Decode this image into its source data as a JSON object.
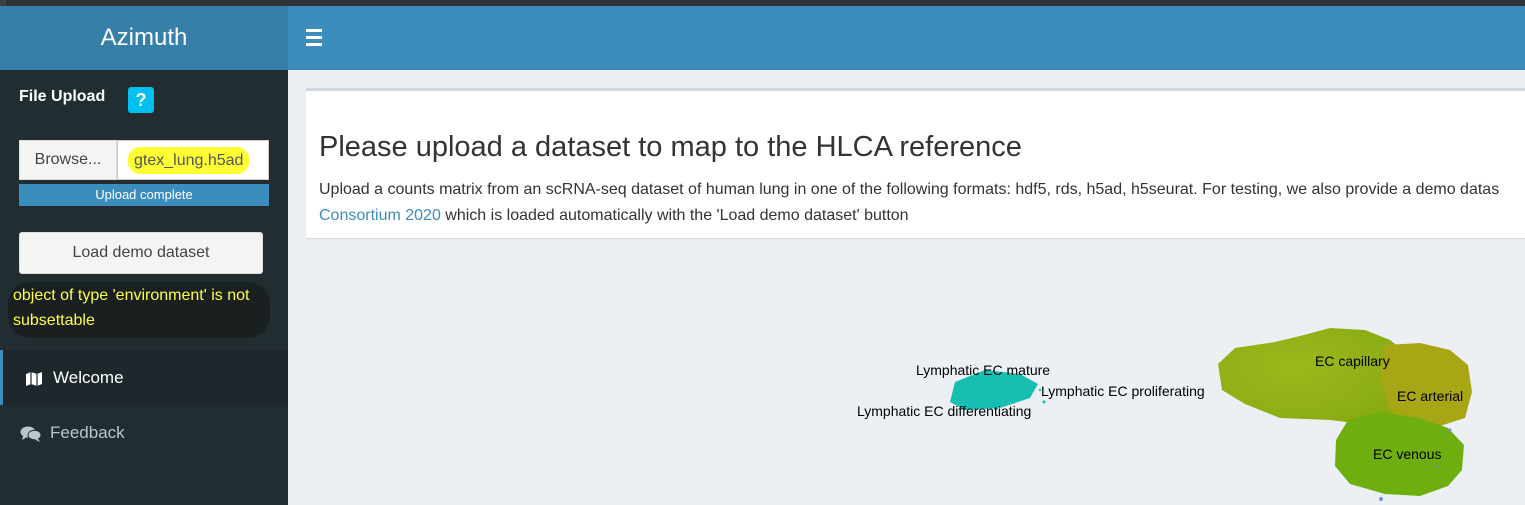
{
  "app": {
    "title": "Azimuth"
  },
  "sidebar": {
    "file_upload_title": "File Upload",
    "help_label": "?",
    "browse_label": "Browse...",
    "file_name": "gtex_lung.h5ad",
    "progress_text": "Upload complete",
    "progress_value": 1.0,
    "demo_button": "Load demo dataset",
    "error_text": "object of type 'environment' is not subsettable",
    "menu": [
      {
        "label": "Welcome",
        "icon": "map-icon",
        "active": true
      },
      {
        "label": "Feedback",
        "icon": "comments-icon",
        "active": false
      }
    ]
  },
  "header": {
    "menu_icon": "hamburger-icon"
  },
  "main": {
    "heading": "Please upload a dataset to map to the HLCA reference",
    "description_line1": "Upload a counts matrix from an scRNA-seq dataset of human lung in one of the following formats: hdf5, rds, h5ad, h5seurat. For testing, we also provide a demo datas",
    "description_link": "Consortium 2020",
    "description_line2_rest": " which is loaded automatically with the 'Load demo dataset' button"
  },
  "plot": {
    "labels": [
      "Lymphatic EC mature",
      "Lymphatic EC differentiating",
      "Lymphatic EC proliferating",
      "EC capillary",
      "EC arterial",
      "EC venous"
    ],
    "colors": {
      "lymphatic": "#17bfb3",
      "capillary": "#96b41a",
      "arterial": "#a9a615",
      "venous": "#6eaf0f",
      "accent_blue": "#6f8fe0"
    }
  },
  "colors": {
    "header": "#3c8dbc",
    "logo": "#367fa9",
    "sidebar": "#222d32",
    "error_highlight": "#ffff44"
  }
}
